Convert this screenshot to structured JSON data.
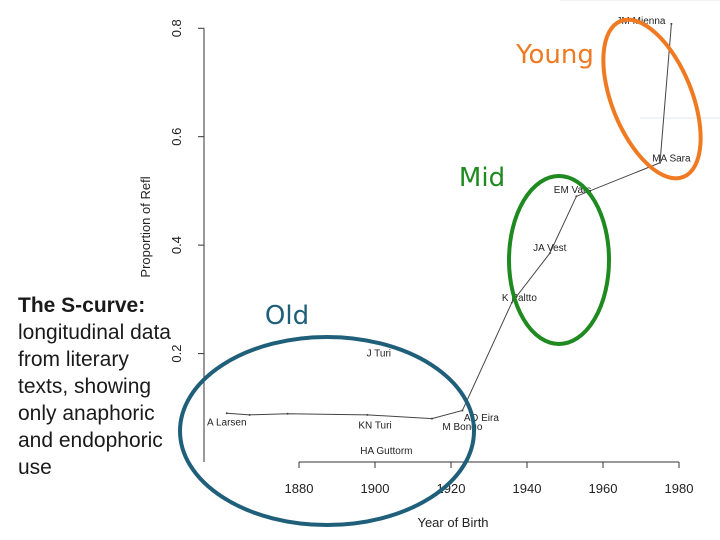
{
  "caption": {
    "heading": "The S-curve:",
    "body": "longitudinal data from literary texts, showing only anaphoric and endophoric use"
  },
  "colors": {
    "young": "#ef7a22",
    "mid": "#1f8a1f",
    "old": "#1f5f7a",
    "axis": "#333333",
    "series": "#444444"
  },
  "group_labels": {
    "young": "Young",
    "mid": "Mid",
    "old": "Old"
  },
  "chart_data": {
    "type": "line",
    "title": "",
    "xlabel": "Year of Birth",
    "ylabel": "Proportion of Refl",
    "xlim": [
      1855,
      1985
    ],
    "ylim": [
      0.0,
      0.83
    ],
    "x_ticks": [
      1880,
      1900,
      1920,
      1940,
      1960,
      1980
    ],
    "y_ticks": [
      0.2,
      0.4,
      0.6,
      0.8
    ],
    "x_tick_labels": [
      "1880",
      "1900",
      "1920",
      "1940",
      "1960",
      "1980"
    ],
    "y_tick_labels": [
      "0.2",
      "0.4",
      "0.6",
      "0.8"
    ],
    "grid": false,
    "series": [
      {
        "values": [
          {
            "x": 1861,
            "y": 0.09
          },
          {
            "x": 1867,
            "y": 0.087
          },
          {
            "x": 1877,
            "y": 0.089
          },
          {
            "x": 1898,
            "y": 0.087
          },
          {
            "x": 1915,
            "y": 0.08
          },
          {
            "x": 1923,
            "y": 0.095
          },
          {
            "x": 1936,
            "y": 0.294
          },
          {
            "x": 1946,
            "y": 0.385
          },
          {
            "x": 1953,
            "y": 0.49
          },
          {
            "x": 1975,
            "y": 0.552
          },
          {
            "x": 1978,
            "y": 0.808
          }
        ]
      }
    ],
    "point_labels": [
      {
        "label": "A Larsen",
        "x": 1861,
        "y": 0.067
      },
      {
        "label": "J Turi",
        "x": 1901,
        "y": 0.195
      },
      {
        "label": "KN Turi",
        "x": 1900,
        "y": 0.062
      },
      {
        "label": "HA Guttorm",
        "x": 1903,
        "y": 0.015
      },
      {
        "label": "AO Eira",
        "x": 1928,
        "y": 0.076
      },
      {
        "label": "M Bongo",
        "x": 1923,
        "y": 0.059
      },
      {
        "label": "K Paltto",
        "x": 1938,
        "y": 0.297
      },
      {
        "label": "JA Vest",
        "x": 1946,
        "y": 0.389
      },
      {
        "label": "EM Vars",
        "x": 1952,
        "y": 0.496
      },
      {
        "label": "MA Sara",
        "x": 1978,
        "y": 0.554
      },
      {
        "label": "JM Mienna",
        "x": 1970,
        "y": 0.808
      }
    ]
  }
}
